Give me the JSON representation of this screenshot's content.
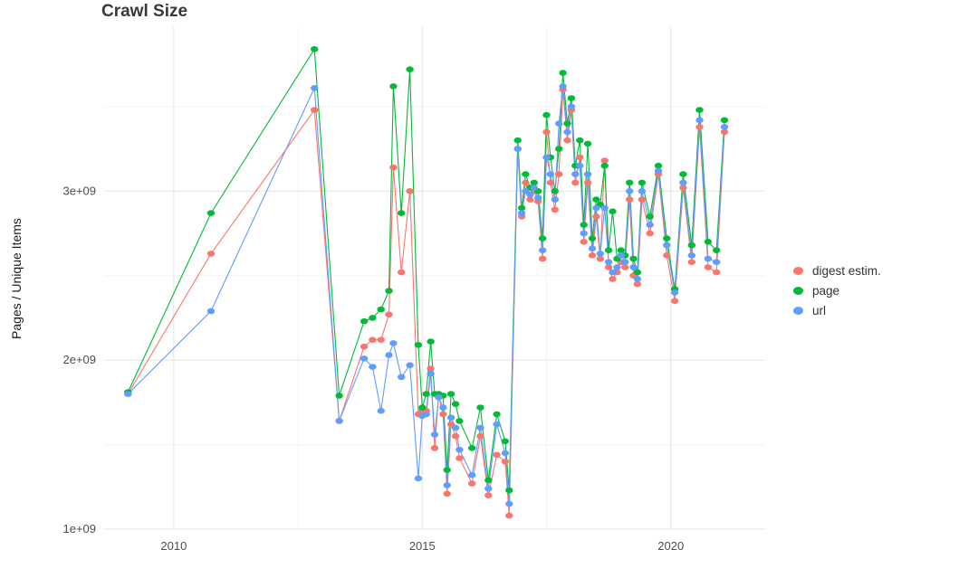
{
  "chart_data": {
    "type": "line",
    "title": "Crawl Size",
    "xlabel": "",
    "ylabel": "Pages / Unique Items",
    "background": "#ffffff",
    "grid": {
      "major_color": "#e3e3e3",
      "minor_color": "#f3f3f3",
      "x_major": [
        2010,
        2015,
        2020
      ],
      "x_minor": [
        2012.5,
        2017.5
      ],
      "y_major": [
        1.0,
        2.0,
        3.0
      ],
      "y_minor": [
        1.5,
        2.5,
        3.5
      ]
    },
    "x_range": [
      2008.6,
      2021.9
    ],
    "y_range": [
      1.0,
      3.97
    ],
    "y_unit": "1e+09 pages / unique items",
    "x_ticks": [
      {
        "value": 2010,
        "label": "2010"
      },
      {
        "value": 2015,
        "label": "2015"
      },
      {
        "value": 2020,
        "label": "2020"
      }
    ],
    "y_ticks": [
      {
        "value": 1.0,
        "label": "1e+09"
      },
      {
        "value": 2.0,
        "label": "2e+09"
      },
      {
        "value": 3.0,
        "label": "3e+09"
      }
    ],
    "legend_position": "right",
    "x": [
      2009.08,
      2010.75,
      2012.83,
      2013.33,
      2013.83,
      2014.0,
      2014.17,
      2014.33,
      2014.42,
      2014.58,
      2014.75,
      2014.92,
      2015.0,
      2015.08,
      2015.17,
      2015.25,
      2015.33,
      2015.42,
      2015.5,
      2015.58,
      2015.67,
      2015.75,
      2016.0,
      2016.17,
      2016.33,
      2016.5,
      2016.67,
      2016.75,
      2016.92,
      2017.0,
      2017.08,
      2017.17,
      2017.25,
      2017.33,
      2017.42,
      2017.5,
      2017.58,
      2017.67,
      2017.75,
      2017.83,
      2017.92,
      2018.0,
      2018.08,
      2018.17,
      2018.25,
      2018.33,
      2018.42,
      2018.5,
      2018.58,
      2018.67,
      2018.75,
      2018.83,
      2018.92,
      2019.0,
      2019.08,
      2019.17,
      2019.25,
      2019.33,
      2019.42,
      2019.58,
      2019.75,
      2019.92,
      2020.08,
      2020.25,
      2020.42,
      2020.58,
      2020.75,
      2020.92,
      2021.08
    ],
    "series": [
      {
        "name": "digest estim.",
        "color": "#F8766D",
        "values": [
          1.8,
          2.63,
          3.48,
          1.64,
          2.08,
          2.12,
          2.12,
          2.27,
          3.14,
          2.52,
          3.0,
          1.68,
          1.7,
          1.7,
          1.95,
          1.48,
          1.79,
          1.68,
          1.21,
          1.62,
          1.55,
          1.42,
          1.27,
          1.55,
          1.2,
          1.44,
          1.4,
          1.08,
          3.25,
          2.85,
          3.05,
          2.95,
          3.0,
          2.94,
          2.6,
          3.35,
          3.05,
          2.89,
          3.1,
          3.6,
          3.3,
          3.48,
          3.05,
          3.2,
          2.7,
          3.05,
          2.62,
          2.85,
          2.6,
          3.18,
          2.55,
          2.48,
          2.52,
          2.58,
          2.55,
          2.95,
          2.5,
          2.45,
          2.95,
          2.75,
          3.1,
          2.62,
          2.35,
          3.02,
          2.58,
          3.38,
          2.55,
          2.52,
          3.35
        ]
      },
      {
        "name": "page",
        "color": "#00BA38",
        "values": [
          1.81,
          2.87,
          3.84,
          1.79,
          2.23,
          2.25,
          2.3,
          2.41,
          3.62,
          2.87,
          3.72,
          2.09,
          1.72,
          1.8,
          2.11,
          1.8,
          1.8,
          1.79,
          1.35,
          1.8,
          1.74,
          1.64,
          1.48,
          1.72,
          1.29,
          1.68,
          1.52,
          1.23,
          3.3,
          2.9,
          3.1,
          3.02,
          3.05,
          3.0,
          2.72,
          3.45,
          3.2,
          3.0,
          3.25,
          3.7,
          3.4,
          3.55,
          3.15,
          3.3,
          2.8,
          3.28,
          2.72,
          2.95,
          2.92,
          3.15,
          2.65,
          2.88,
          2.6,
          2.65,
          2.62,
          3.05,
          2.6,
          2.52,
          3.05,
          2.85,
          3.15,
          2.72,
          2.42,
          3.1,
          2.68,
          3.48,
          2.7,
          2.65,
          3.42
        ]
      },
      {
        "name": "url",
        "color": "#619CFF",
        "values": [
          1.8,
          2.29,
          3.61,
          1.64,
          2.01,
          1.96,
          1.7,
          2.03,
          2.1,
          1.9,
          1.97,
          1.3,
          1.67,
          1.68,
          1.92,
          1.56,
          1.78,
          1.72,
          1.26,
          1.66,
          1.6,
          1.47,
          1.32,
          1.6,
          1.24,
          1.62,
          1.45,
          1.15,
          3.25,
          2.87,
          3.0,
          2.98,
          3.02,
          2.96,
          2.65,
          3.2,
          3.1,
          2.95,
          3.4,
          3.62,
          3.35,
          3.5,
          3.1,
          3.15,
          2.75,
          3.1,
          2.66,
          2.9,
          2.63,
          2.9,
          2.58,
          2.52,
          2.55,
          2.62,
          2.58,
          3.0,
          2.55,
          2.48,
          3.0,
          2.8,
          3.12,
          2.68,
          2.4,
          3.05,
          2.62,
          3.42,
          2.6,
          2.58,
          3.38
        ]
      }
    ]
  }
}
